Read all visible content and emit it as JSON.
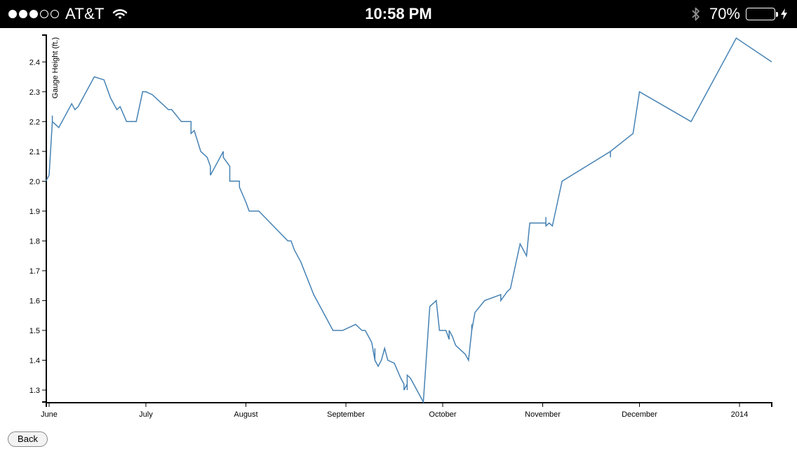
{
  "status_bar": {
    "carrier": "AT&T",
    "signal_total": 5,
    "signal_filled": 3,
    "time": "10:58 PM",
    "battery_percent_label": "70%",
    "battery_level": 0.7,
    "battery_color": "#4cd964",
    "icons": [
      "wifi-icon",
      "bluetooth-icon",
      "battery-icon",
      "charging-bolt-icon"
    ]
  },
  "chart_data": {
    "type": "line",
    "ylabel": "Gauge Height (ft.)",
    "ylim": [
      1.26,
      2.49
    ],
    "xlim": [
      "2013-06-01",
      "2014-01-11"
    ],
    "line_color": "#4682b4",
    "y_ticks": [
      1.3,
      1.4,
      1.5,
      1.6,
      1.7,
      1.8,
      1.9,
      2.0,
      2.1,
      2.2,
      2.3,
      2.4
    ],
    "x_ticks": [
      {
        "date": "2013-06-01",
        "label": "June"
      },
      {
        "date": "2013-07-01",
        "label": "July"
      },
      {
        "date": "2013-08-01",
        "label": "August"
      },
      {
        "date": "2013-09-01",
        "label": "September"
      },
      {
        "date": "2013-10-01",
        "label": "October"
      },
      {
        "date": "2013-11-01",
        "label": "November"
      },
      {
        "date": "2013-12-01",
        "label": "December"
      },
      {
        "date": "2014-01-01",
        "label": "2014"
      }
    ],
    "series": [
      {
        "points": [
          [
            "2013-05-31",
            2.0
          ],
          [
            "2013-06-01",
            2.02
          ],
          [
            "2013-06-02",
            2.2
          ],
          [
            "2013-06-02",
            2.22
          ],
          [
            "2013-06-02",
            2.2
          ],
          [
            "2013-06-04",
            2.18
          ],
          [
            "2013-06-08",
            2.26
          ],
          [
            "2013-06-09",
            2.24
          ],
          [
            "2013-06-10",
            2.25
          ],
          [
            "2013-06-15",
            2.35
          ],
          [
            "2013-06-18",
            2.34
          ],
          [
            "2013-06-20",
            2.28
          ],
          [
            "2013-06-22",
            2.24
          ],
          [
            "2013-06-23",
            2.25
          ],
          [
            "2013-06-25",
            2.2
          ],
          [
            "2013-06-28",
            2.2
          ],
          [
            "2013-06-30",
            2.3
          ],
          [
            "2013-07-01",
            2.3
          ],
          [
            "2013-07-03",
            2.29
          ],
          [
            "2013-07-06",
            2.26
          ],
          [
            "2013-07-08",
            2.24
          ],
          [
            "2013-07-09",
            2.24
          ],
          [
            "2013-07-12",
            2.2
          ],
          [
            "2013-07-15",
            2.2
          ],
          [
            "2013-07-15",
            2.16
          ],
          [
            "2013-07-16",
            2.17
          ],
          [
            "2013-07-18",
            2.1
          ],
          [
            "2013-07-20",
            2.08
          ],
          [
            "2013-07-21",
            2.05
          ],
          [
            "2013-07-21",
            2.02
          ],
          [
            "2013-07-25",
            2.1
          ],
          [
            "2013-07-25",
            2.08
          ],
          [
            "2013-07-27",
            2.05
          ],
          [
            "2013-07-27",
            2.0
          ],
          [
            "2013-07-30",
            2.0
          ],
          [
            "2013-07-30",
            1.98
          ],
          [
            "2013-08-01",
            1.93
          ],
          [
            "2013-08-02",
            1.9
          ],
          [
            "2013-08-05",
            1.9
          ],
          [
            "2013-08-14",
            1.8
          ],
          [
            "2013-08-15",
            1.8
          ],
          [
            "2013-08-16",
            1.77
          ],
          [
            "2013-08-17",
            1.75
          ],
          [
            "2013-08-18",
            1.73
          ],
          [
            "2013-08-22",
            1.62
          ],
          [
            "2013-08-24",
            1.58
          ],
          [
            "2013-08-28",
            1.5
          ],
          [
            "2013-08-31",
            1.5
          ],
          [
            "2013-09-04",
            1.52
          ],
          [
            "2013-09-06",
            1.5
          ],
          [
            "2013-09-07",
            1.5
          ],
          [
            "2013-09-09",
            1.46
          ],
          [
            "2013-09-10",
            1.4
          ],
          [
            "2013-09-10",
            1.44
          ],
          [
            "2013-09-10",
            1.4
          ],
          [
            "2013-09-11",
            1.38
          ],
          [
            "2013-09-12",
            1.4
          ],
          [
            "2013-09-13",
            1.44
          ],
          [
            "2013-09-14",
            1.4
          ],
          [
            "2013-09-16",
            1.39
          ],
          [
            "2013-09-18",
            1.34
          ],
          [
            "2013-09-19",
            1.32
          ],
          [
            "2013-09-19",
            1.3
          ],
          [
            "2013-09-20",
            1.32
          ],
          [
            "2013-09-20",
            1.3
          ],
          [
            "2013-09-20",
            1.35
          ],
          [
            "2013-09-21",
            1.34
          ],
          [
            "2013-09-22",
            1.32
          ],
          [
            "2013-09-25",
            1.26
          ],
          [
            "2013-09-27",
            1.58
          ],
          [
            "2013-09-29",
            1.6
          ],
          [
            "2013-09-30",
            1.5
          ],
          [
            "2013-10-02",
            1.5
          ],
          [
            "2013-10-03",
            1.47
          ],
          [
            "2013-10-03",
            1.5
          ],
          [
            "2013-10-04",
            1.48
          ],
          [
            "2013-10-05",
            1.45
          ],
          [
            "2013-10-08",
            1.42
          ],
          [
            "2013-10-09",
            1.4
          ],
          [
            "2013-10-10",
            1.5
          ],
          [
            "2013-10-10",
            1.52
          ],
          [
            "2013-10-10",
            1.5
          ],
          [
            "2013-10-11",
            1.56
          ],
          [
            "2013-10-14",
            1.6
          ],
          [
            "2013-10-19",
            1.62
          ],
          [
            "2013-10-19",
            1.6
          ],
          [
            "2013-10-21",
            1.63
          ],
          [
            "2013-10-22",
            1.64
          ],
          [
            "2013-10-25",
            1.79
          ],
          [
            "2013-10-27",
            1.75
          ],
          [
            "2013-10-28",
            1.86
          ],
          [
            "2013-11-01",
            1.86
          ],
          [
            "2013-11-02",
            1.86
          ],
          [
            "2013-11-02",
            1.88
          ],
          [
            "2013-11-02",
            1.85
          ],
          [
            "2013-11-03",
            1.86
          ],
          [
            "2013-11-04",
            1.85
          ],
          [
            "2013-11-06",
            1.95
          ],
          [
            "2013-11-07",
            2.0
          ],
          [
            "2013-11-22",
            2.1
          ],
          [
            "2013-11-22",
            2.08
          ],
          [
            "2013-11-22",
            2.1
          ],
          [
            "2013-11-29",
            2.16
          ],
          [
            "2013-12-01",
            2.3
          ],
          [
            "2013-12-17",
            2.2
          ],
          [
            "2013-12-31",
            2.48
          ],
          [
            "2014-01-11",
            2.4
          ]
        ]
      }
    ]
  },
  "back_button": {
    "label": "Back"
  }
}
